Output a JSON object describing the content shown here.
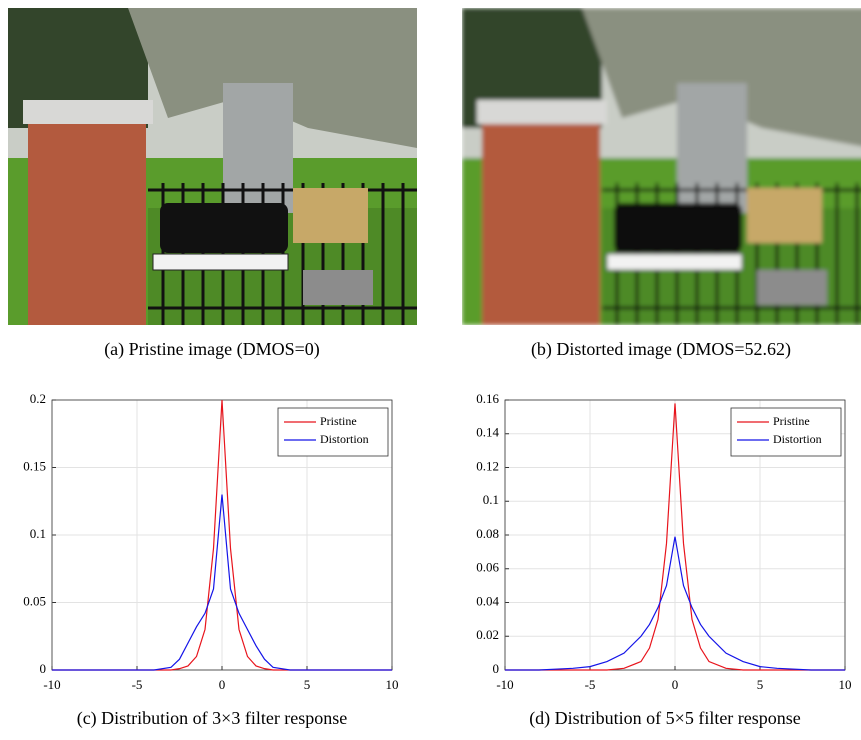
{
  "images": [
    {
      "caption": "(a)  Pristine image (DMOS=0)"
    },
    {
      "caption": "(b)  Distorted image (DMOS=52.62)"
    }
  ],
  "chart_data": [
    {
      "type": "line",
      "caption": "(c)  Distribution of 3×3 filter response",
      "x": [
        -10,
        -8,
        -6,
        -4,
        -3,
        -2.5,
        -2,
        -1.5,
        -1,
        -0.5,
        0,
        0.5,
        1,
        1.5,
        2,
        2.5,
        3,
        4,
        6,
        8,
        10
      ],
      "series": [
        {
          "name": "Pristine",
          "color": "#e8141c",
          "values": [
            0,
            0,
            0,
            0,
            0,
            0.001,
            0.003,
            0.01,
            0.03,
            0.09,
            0.2,
            0.09,
            0.03,
            0.01,
            0.003,
            0.001,
            0,
            0,
            0,
            0,
            0
          ]
        },
        {
          "name": "Distortion",
          "color": "#1414e8",
          "values": [
            0,
            0,
            0,
            0,
            0.002,
            0.008,
            0.02,
            0.032,
            0.042,
            0.06,
            0.13,
            0.06,
            0.042,
            0.03,
            0.018,
            0.008,
            0.002,
            0,
            0,
            0,
            0
          ]
        }
      ],
      "xlim": [
        -10,
        10
      ],
      "xticks": [
        -10,
        -5,
        0,
        5,
        10
      ],
      "ylim": [
        0,
        0.2
      ],
      "yticks": [
        0,
        0.05,
        0.1,
        0.15,
        0.2
      ],
      "grid": true,
      "legend": "top-right"
    },
    {
      "type": "line",
      "caption": "(d)  Distribution of 5×5 filter response",
      "x": [
        -10,
        -8,
        -6,
        -5,
        -4,
        -3,
        -2,
        -1.5,
        -1,
        -0.5,
        0,
        0.5,
        1,
        1.5,
        2,
        3,
        4,
        5,
        6,
        8,
        10
      ],
      "series": [
        {
          "name": "Pristine",
          "color": "#e8141c",
          "values": [
            0,
            0,
            0,
            0,
            0,
            0.001,
            0.005,
            0.013,
            0.03,
            0.075,
            0.158,
            0.075,
            0.03,
            0.013,
            0.005,
            0.001,
            0,
            0,
            0,
            0,
            0
          ]
        },
        {
          "name": "Distortion",
          "color": "#1414e8",
          "values": [
            0,
            0,
            0.001,
            0.002,
            0.005,
            0.01,
            0.02,
            0.027,
            0.037,
            0.05,
            0.079,
            0.05,
            0.037,
            0.027,
            0.02,
            0.01,
            0.005,
            0.002,
            0.001,
            0,
            0
          ]
        }
      ],
      "xlim": [
        -10,
        10
      ],
      "xticks": [
        -10,
        -5,
        0,
        5,
        10
      ],
      "ylim": [
        0,
        0.16
      ],
      "yticks": [
        0,
        0.02,
        0.04,
        0.06,
        0.08,
        0.1,
        0.12,
        0.14,
        0.16
      ],
      "grid": true,
      "legend": "top-right"
    }
  ]
}
